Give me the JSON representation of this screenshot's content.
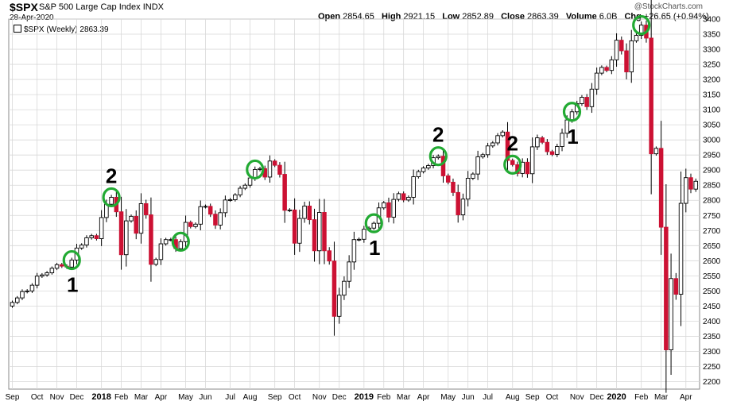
{
  "header": {
    "symbol": "$SPX",
    "name": "S&P 500 Large Cap Index",
    "exchange": "INDX",
    "date": "28-Apr-2020",
    "watermark": "@StockCharts.com",
    "open_label": "Open",
    "open_value": "2854.65",
    "high_label": "High",
    "high_value": "2921.15",
    "low_label": "Low",
    "low_value": "2852.89",
    "close_label": "Close",
    "close_value": "2863.39",
    "volume_label": "Volume",
    "volume_value": "6.0B",
    "chg_label": "Chg",
    "chg_value": "+26.65 (+0.94%)"
  },
  "legend": {
    "text": "$SPX (Weekly) 2863.39"
  },
  "colors": {
    "up": "#ffffff",
    "down": "#cc1133",
    "circle": "#22aa33",
    "grid": "#d8d8d8"
  },
  "chart_data": {
    "type": "candlestick",
    "title": "$SPX S&P 500 Large Cap Index (Weekly)",
    "ylim": [
      2175,
      3400
    ],
    "yticks": [
      2200,
      2250,
      2300,
      2350,
      2400,
      2450,
      2500,
      2550,
      2600,
      2650,
      2700,
      2750,
      2800,
      2850,
      2900,
      2950,
      3000,
      3050,
      3100,
      3150,
      3200,
      3250,
      3300,
      3350,
      3400
    ],
    "xlabels": [
      {
        "label": "Sep",
        "i": 0,
        "bold": false
      },
      {
        "label": "Oct",
        "i": 5,
        "bold": false
      },
      {
        "label": "Nov",
        "i": 9,
        "bold": false
      },
      {
        "label": "Dec",
        "i": 13,
        "bold": false
      },
      {
        "label": "2018",
        "i": 18,
        "bold": true
      },
      {
        "label": "Feb",
        "i": 22,
        "bold": false
      },
      {
        "label": "Mar",
        "i": 26,
        "bold": false
      },
      {
        "label": "Apr",
        "i": 30,
        "bold": false
      },
      {
        "label": "May",
        "i": 35,
        "bold": false
      },
      {
        "label": "Jun",
        "i": 39,
        "bold": false
      },
      {
        "label": "Jul",
        "i": 44,
        "bold": false
      },
      {
        "label": "Aug",
        "i": 48,
        "bold": false
      },
      {
        "label": "Sep",
        "i": 53,
        "bold": false
      },
      {
        "label": "Oct",
        "i": 57,
        "bold": false
      },
      {
        "label": "Nov",
        "i": 62,
        "bold": false
      },
      {
        "label": "Dec",
        "i": 66,
        "bold": false
      },
      {
        "label": "2019",
        "i": 71,
        "bold": true
      },
      {
        "label": "Feb",
        "i": 75,
        "bold": false
      },
      {
        "label": "Mar",
        "i": 79,
        "bold": false
      },
      {
        "label": "Apr",
        "i": 83,
        "bold": false
      },
      {
        "label": "May",
        "i": 88,
        "bold": false
      },
      {
        "label": "Jun",
        "i": 92,
        "bold": false
      },
      {
        "label": "Jul",
        "i": 96,
        "bold": false
      },
      {
        "label": "Aug",
        "i": 101,
        "bold": false
      },
      {
        "label": "Sep",
        "i": 105,
        "bold": false
      },
      {
        "label": "Oct",
        "i": 109,
        "bold": false
      },
      {
        "label": "Nov",
        "i": 114,
        "bold": false
      },
      {
        "label": "Dec",
        "i": 118,
        "bold": false
      },
      {
        "label": "2020",
        "i": 122,
        "bold": true
      },
      {
        "label": "Feb",
        "i": 127,
        "bold": false
      },
      {
        "label": "Mar",
        "i": 131,
        "bold": false
      },
      {
        "label": "Apr",
        "i": 136,
        "bold": false
      }
    ],
    "closes": [
      2462,
      2477,
      2498,
      2500,
      2519,
      2549,
      2553,
      2560,
      2575,
      2587,
      2582,
      2579,
      2602,
      2642,
      2652,
      2676,
      2683,
      2673,
      2743,
      2787,
      2810,
      2762,
      2620,
      2732,
      2747,
      2691,
      2789,
      2752,
      2588,
      2604,
      2656,
      2670,
      2670,
      2640,
      2663,
      2727,
      2713,
      2721,
      2779,
      2780,
      2754,
      2718,
      2759,
      2801,
      2802,
      2818,
      2840,
      2850,
      2874,
      2902,
      2905,
      2877,
      2930,
      2916,
      2886,
      2767,
      2768,
      2658,
      2740,
      2781,
      2736,
      2633,
      2760,
      2633,
      2599,
      2416,
      2486,
      2532,
      2596,
      2670,
      2671,
      2704,
      2708,
      2724,
      2775,
      2792,
      2744,
      2803,
      2822,
      2801,
      2810,
      2878,
      2895,
      2907,
      2915,
      2941,
      2946,
      2881,
      2860,
      2826,
      2752,
      2804,
      2873,
      2887,
      2944,
      2951,
      2980,
      2990,
      3014,
      3026,
      2932,
      2918,
      2889,
      2926,
      2888,
      2977,
      3007,
      2992,
      2961,
      2952,
      2978,
      3022,
      3066,
      3093,
      3120,
      3141,
      3110,
      3168,
      3221,
      3240,
      3230,
      3265,
      3330,
      3295,
      3225,
      3328,
      3346,
      3380,
      3337,
      2954,
      2972,
      2711,
      2305,
      2541,
      2489,
      2790,
      2875,
      2837,
      2863
    ],
    "circles": [
      {
        "i": 12,
        "label": "1",
        "label_pos": "below"
      },
      {
        "i": 20,
        "label": "2",
        "label_pos": "above"
      },
      {
        "i": 34,
        "label": "",
        "label_pos": "none"
      },
      {
        "i": 49,
        "label": "",
        "label_pos": "none"
      },
      {
        "i": 73,
        "label": "1",
        "label_pos": "below"
      },
      {
        "i": 86,
        "label": "2",
        "label_pos": "above"
      },
      {
        "i": 101,
        "label": "2",
        "label_pos": "above"
      },
      {
        "i": 113,
        "label": "1",
        "label_pos": "below"
      },
      {
        "i": 127,
        "label": "",
        "label_pos": "none"
      }
    ]
  }
}
